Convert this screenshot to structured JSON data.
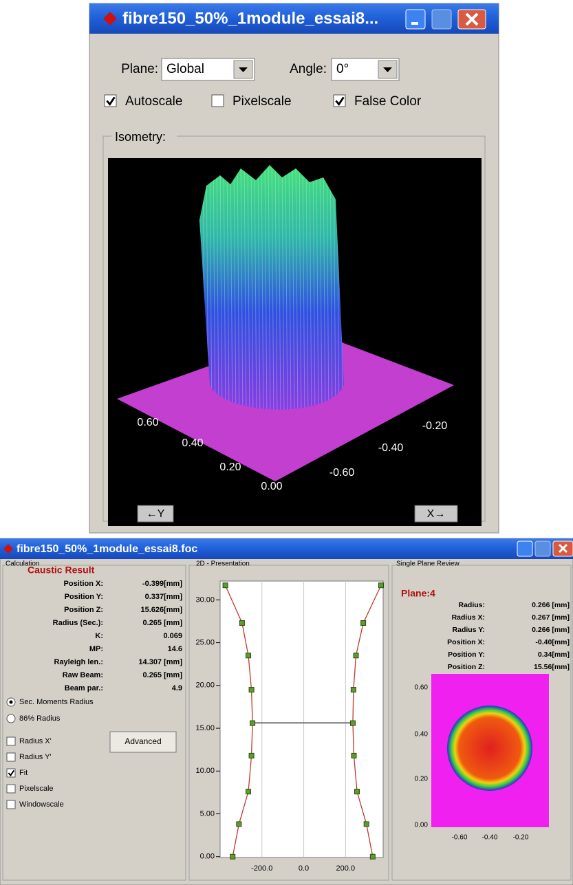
{
  "top_window": {
    "title": "fibre150_50%_1module_essai8...",
    "plane": {
      "label": "Plane:",
      "value": "Global"
    },
    "angle": {
      "label": "Angle:",
      "value": "0°"
    },
    "options": [
      {
        "label": "Autoscale",
        "checked": true
      },
      {
        "label": "Pixelscale",
        "checked": false
      },
      {
        "label": "False Color",
        "checked": true
      }
    ],
    "isometry": {
      "title": "Isometry:",
      "y_labels": [
        "0.60",
        "0.40",
        "0.20",
        "0.00"
      ],
      "x_labels": [
        "-0.20",
        "-0.40",
        "-0.60"
      ],
      "y_button": "←Y",
      "x_button": "X→"
    }
  },
  "bottom_window": {
    "title": "fibre150_50%_1module_essai8.foc",
    "calculation": {
      "title": "Calculation",
      "heading": "Caustic Result",
      "rows": [
        [
          "Position X:",
          "-0.399[mm]"
        ],
        [
          "Position Y:",
          "0.337[mm]"
        ],
        [
          "Position Z:",
          "15.626[mm]"
        ],
        [
          "Radius (Sec.):",
          "0.265 [mm]"
        ],
        [
          "K:",
          "0.069"
        ],
        [
          "MP:",
          "14.6"
        ],
        [
          "Rayleigh len.:",
          "14.307 [mm]"
        ],
        [
          "Raw Beam:",
          "0.265 [mm]"
        ],
        [
          "Beam par.:",
          "4.9"
        ]
      ],
      "radios": [
        {
          "label": "Sec. Moments Radius",
          "selected": true
        },
        {
          "label": "86% Radius",
          "selected": false
        }
      ],
      "checks": [
        {
          "label": "Radius X'",
          "checked": false
        },
        {
          "label": "Radius Y'",
          "checked": false
        },
        {
          "label": "Fit",
          "checked": true
        },
        {
          "label": "Pixelscale",
          "checked": false
        },
        {
          "label": "Windowscale",
          "checked": false
        }
      ],
      "button": "Advanced"
    },
    "single_plane": {
      "title": "Single Plane Review",
      "heading": "Plane:4",
      "rows": [
        [
          "Radius:",
          "0.266 [mm]"
        ],
        [
          "Radius X:",
          "0.267 [mm]"
        ],
        [
          "Radius Y:",
          "0.266 [mm]"
        ],
        [
          "Position X:",
          "-0.40[mm]"
        ],
        [
          "Position Y:",
          "0.34[mm]"
        ],
        [
          "Position Z:",
          "15.56[mm]"
        ]
      ],
      "y_labels": [
        "0.60",
        "0.40",
        "0.20",
        "0.00"
      ],
      "x_labels": [
        "-0.60",
        "-0.40",
        "-0.20"
      ]
    }
  },
  "chart_data": {
    "type": "line",
    "title": "2D - Presentation",
    "xlim": [
      -400,
      380
    ],
    "ylim": [
      -0.1,
      32.2
    ],
    "xticks": [
      {
        "value": -200,
        "label": "-200.0"
      },
      {
        "value": 0,
        "label": "0.0"
      },
      {
        "value": 200,
        "label": "200.0"
      }
    ],
    "yticks": [
      {
        "value": 0,
        "label": "0.00"
      },
      {
        "value": 5,
        "label": "5.00"
      },
      {
        "value": 10,
        "label": "10.00"
      },
      {
        "value": 15,
        "label": "15.00"
      },
      {
        "value": 20,
        "label": "20.00"
      },
      {
        "value": 25,
        "label": "25.00"
      },
      {
        "value": 30,
        "label": "30.00"
      }
    ],
    "grid": true,
    "color": "#c0392b",
    "marker_color": "#5a9e2f",
    "waist": 15.626,
    "series": [
      {
        "x": [
          -340,
          -310,
          -265,
          -250,
          -245,
          -250,
          -265,
          -295,
          -375
        ],
        "values": [
          0,
          3.8,
          7.6,
          11.8,
          15.6,
          19.5,
          23.5,
          27.3,
          31.7
        ]
      },
      {
        "x": [
          330,
          300,
          255,
          240,
          235,
          238,
          250,
          285,
          370
        ],
        "values": [
          0,
          3.8,
          7.6,
          11.8,
          15.6,
          19.5,
          23.5,
          27.3,
          31.7
        ]
      }
    ]
  }
}
